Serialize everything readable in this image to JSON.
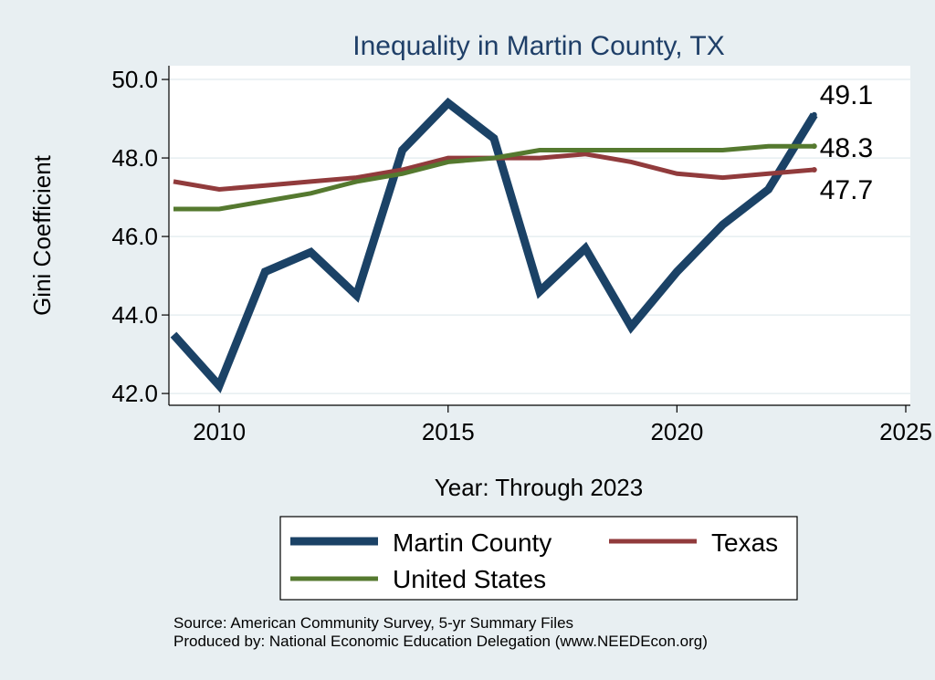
{
  "chart_data": {
    "type": "line",
    "title": "Inequality in Martin County, TX",
    "xlabel": "Year: Through 2023",
    "ylabel": "Gini Coefficient",
    "xlim": [
      2008.9,
      2025.1
    ],
    "ylim": [
      41.7,
      50.35
    ],
    "xticks": [
      2010,
      2015,
      2020,
      2025
    ],
    "yticks": [
      42.0,
      44.0,
      46.0,
      48.0,
      50.0
    ],
    "ytick_labels": [
      "42.0",
      "44.0",
      "46.0",
      "48.0",
      "50.0"
    ],
    "grid": true,
    "x": [
      2009,
      2010,
      2011,
      2012,
      2013,
      2014,
      2015,
      2016,
      2017,
      2018,
      2019,
      2020,
      2021,
      2022,
      2023
    ],
    "series": [
      {
        "name": "Martin County",
        "color": "#1b4266",
        "values": [
          43.5,
          42.2,
          45.1,
          45.6,
          44.5,
          48.2,
          49.4,
          48.5,
          44.6,
          45.7,
          43.7,
          45.1,
          46.3,
          47.2,
          49.1
        ],
        "end_label": "49.1"
      },
      {
        "name": "Texas",
        "color": "#913b3c",
        "values": [
          47.4,
          47.2,
          47.3,
          47.4,
          47.5,
          47.7,
          48.0,
          48.0,
          48.0,
          48.1,
          47.9,
          47.6,
          47.5,
          47.6,
          47.7
        ],
        "end_label": "47.7"
      },
      {
        "name": "United States",
        "color": "#55792f",
        "values": [
          46.7,
          46.7,
          46.9,
          47.1,
          47.4,
          47.6,
          47.9,
          48.0,
          48.2,
          48.2,
          48.2,
          48.2,
          48.2,
          48.3,
          48.3
        ],
        "end_label": "48.3"
      }
    ],
    "legend": {
      "position": "bottom",
      "entries": [
        "Martin County",
        "Texas",
        "United States"
      ]
    },
    "notes": [
      "Source: American Community Survey, 5-yr Summary Files",
      "Produced by: National Economic Education Delegation (www.NEEDEcon.org)"
    ]
  }
}
